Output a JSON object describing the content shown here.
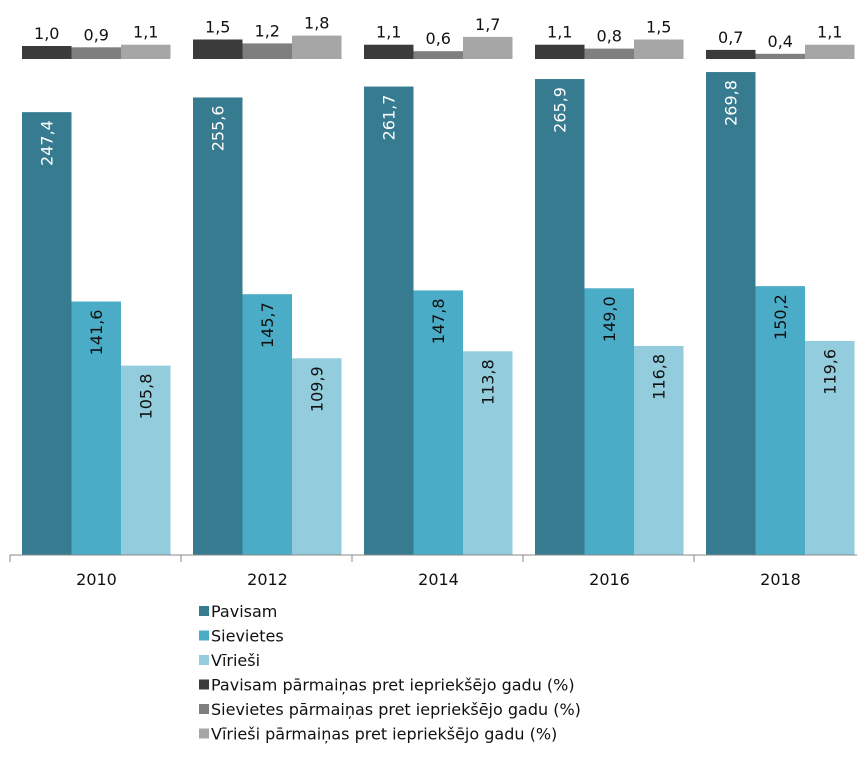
{
  "chart_data": [
    {
      "type": "bar",
      "categories": [
        "2010",
        "2012",
        "2014",
        "2016",
        "2018"
      ],
      "ylim": [
        0,
        4
      ],
      "series": [
        {
          "name": "Pavisam pārmaiņas pret iepriekšējo gadu (%)",
          "color": "#3b3b3b",
          "values": [
            1.0,
            1.5,
            1.1,
            1.1,
            0.7
          ],
          "value_labels": [
            "1,0",
            "1,5",
            "1,1",
            "1,1",
            "0,7"
          ]
        },
        {
          "name": "Sievietes pārmaiņas pret iepriekšējo gadu (%)",
          "color": "#7f7f7f",
          "values": [
            0.9,
            1.2,
            0.6,
            0.8,
            0.4
          ],
          "value_labels": [
            "0,9",
            "1,2",
            "0,6",
            "0,8",
            "0,4"
          ]
        },
        {
          "name": "Vīrieši pārmaiņas pret iepriekšējo gadu (%)",
          "color": "#a6a6a6",
          "values": [
            1.1,
            1.8,
            1.7,
            1.5,
            1.1
          ],
          "value_labels": [
            "1,1",
            "1,8",
            "1,7",
            "1,5",
            "1,1"
          ]
        }
      ]
    },
    {
      "type": "bar",
      "categories": [
        "2010",
        "2012",
        "2014",
        "2016",
        "2018"
      ],
      "ylim": [
        0,
        300
      ],
      "series": [
        {
          "name": "Pavisam",
          "color": "#367b8f",
          "values": [
            247.4,
            255.6,
            261.7,
            265.9,
            269.8
          ],
          "value_labels": [
            "247,4",
            "255,6",
            "261,7",
            "265,9",
            "269,8"
          ]
        },
        {
          "name": "Sievietes",
          "color": "#4aacc6",
          "values": [
            141.6,
            145.7,
            147.8,
            149.0,
            150.2
          ],
          "value_labels": [
            "141,6",
            "145,7",
            "147,8",
            "149,0",
            "150,2"
          ]
        },
        {
          "name": "Vīrieši",
          "color": "#93cddd",
          "values": [
            105.8,
            109.9,
            113.8,
            116.8,
            119.6
          ],
          "value_labels": [
            "105,8",
            "109,9",
            "113,8",
            "116,8",
            "119,6"
          ]
        }
      ]
    }
  ]
}
